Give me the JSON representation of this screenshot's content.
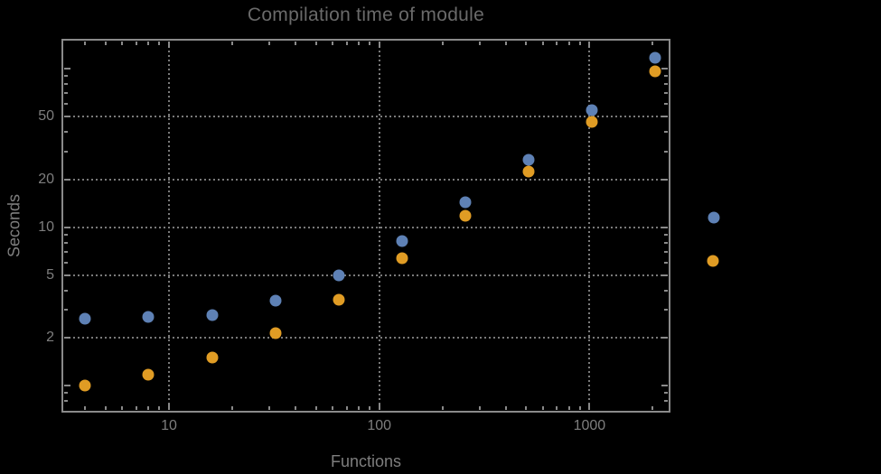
{
  "window": {
    "background": "#000000"
  },
  "chart_data": {
    "type": "scatter",
    "title": "Compilation time of module",
    "xlabel": "Functions",
    "ylabel": "Seconds",
    "x_scale": "log",
    "y_scale": "log",
    "grid": {
      "style": "dotted",
      "x_values": [
        10,
        100,
        1000
      ],
      "y_values": [
        2,
        5,
        10,
        20,
        50
      ]
    },
    "xlim": [
      3.11,
      2404
    ],
    "ylim": [
      0.685,
      152.6
    ],
    "x": [
      4,
      8,
      16,
      32,
      64,
      128,
      256,
      512,
      1024,
      2048
    ],
    "series": [
      {
        "name": "blue",
        "color": "#5E81B5",
        "values": [
          2.66,
          2.73,
          2.8,
          3.46,
          5.0,
          8.2,
          14.3,
          26.5,
          55.0,
          118.0
        ]
      },
      {
        "name": "orange",
        "color": "#E09C24",
        "values": [
          1.0,
          1.17,
          1.5,
          2.15,
          3.5,
          6.4,
          11.8,
          22.5,
          46.0,
          96.0
        ]
      }
    ],
    "x_axis": {
      "labeled_ticks": [
        10,
        100,
        1000
      ],
      "unlabeled_major_ticks": [],
      "minor_ticks": [
        4,
        5,
        6,
        7,
        8,
        9,
        20,
        30,
        40,
        50,
        60,
        70,
        80,
        90,
        200,
        300,
        400,
        500,
        600,
        700,
        800,
        900,
        2000
      ]
    },
    "y_axis": {
      "labeled_ticks": [
        2,
        5,
        10,
        20,
        50
      ],
      "unlabeled_major_ticks": [
        1,
        100
      ],
      "minor_ticks": [
        0.8,
        0.9,
        3,
        4,
        6,
        7,
        8,
        9,
        30,
        40,
        60,
        70,
        80,
        90
      ]
    },
    "legend": {
      "position": "right-outside",
      "markers": [
        {
          "series": "blue",
          "color": "#5E81B5"
        },
        {
          "series": "orange",
          "color": "#E09C24"
        }
      ]
    },
    "colors": {
      "frame": "#8a8a8a",
      "grid": "#7a7a7a",
      "title": "#6a6a6a",
      "tick_labels": "#7e7e7e",
      "axis_labels": "#7e7e7e"
    }
  }
}
